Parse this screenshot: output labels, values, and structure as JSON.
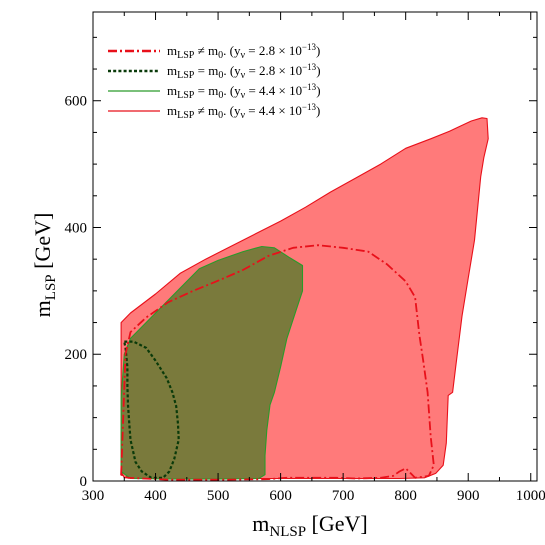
{
  "chart_data": {
    "type": "area",
    "x_axis": {
      "label_main": "m",
      "label_sub": "NLSP",
      "label_rest": " [GeV]",
      "range": [
        300,
        1010
      ],
      "ticks": [
        300,
        400,
        500,
        600,
        700,
        800,
        900,
        1000
      ],
      "tick_labels": [
        "300",
        "400",
        "500",
        "600",
        "700",
        "800",
        "900",
        "1000"
      ]
    },
    "y_axis": {
      "label_main": "m",
      "label_sub": "LSP",
      "label_rest": " [GeV]",
      "range": [
        0,
        740
      ],
      "ticks": [
        0,
        200,
        400,
        600
      ],
      "tick_labels": [
        "0",
        "200",
        "400",
        "600"
      ]
    },
    "legend_placement": "top-left",
    "series": [
      {
        "name": "mLSP ≠ m0. (yν = 2.8 × 10−13)",
        "legend": {
          "m": "m",
          "sub1": "LSP",
          "rel": " ≠ m",
          "sub0": "0",
          "mid": ". (y",
          "nu": "ν",
          "val": " = 2.8 × 10",
          "exp": "−13",
          "end": ")"
        },
        "style": "dashed",
        "color": "#e8101a",
        "fill": "none",
        "points": [
          [
            345,
            10
          ],
          [
            348,
            90
          ],
          [
            352,
            200
          ],
          [
            360,
            235
          ],
          [
            385,
            258
          ],
          [
            420,
            282
          ],
          [
            460,
            300
          ],
          [
            500,
            316
          ],
          [
            540,
            333
          ],
          [
            580,
            355
          ],
          [
            620,
            368
          ],
          [
            660,
            372
          ],
          [
            700,
            368
          ],
          [
            740,
            362
          ],
          [
            770,
            342
          ],
          [
            800,
            315
          ],
          [
            815,
            290
          ],
          [
            822,
            230
          ],
          [
            828,
            190
          ],
          [
            835,
            140
          ],
          [
            840,
            70
          ],
          [
            845,
            25
          ],
          [
            837,
            8
          ],
          [
            815,
            5
          ],
          [
            800,
            20
          ],
          [
            790,
            15
          ],
          [
            780,
            8
          ],
          [
            760,
            5
          ],
          [
            720,
            4
          ],
          [
            690,
            5
          ],
          [
            664,
            5
          ],
          [
            640,
            5
          ],
          [
            610,
            5
          ],
          [
            580,
            3
          ],
          [
            500,
            2
          ],
          [
            420,
            2
          ],
          [
            356,
            5
          ],
          [
            345,
            10
          ]
        ]
      },
      {
        "name": "mLSP = m0. (yν = 2.8 × 10−13)",
        "legend": {
          "m": "m",
          "sub1": "LSP",
          "rel": " = m",
          "sub0": "0",
          "mid": ". (y",
          "nu": "ν",
          "val": " = 2.8 × 10",
          "exp": "−13",
          "end": ")"
        },
        "style": "dotted",
        "color": "#0a3a0a",
        "fill": "none",
        "points": [
          [
            350,
            220
          ],
          [
            365,
            220
          ],
          [
            385,
            210
          ],
          [
            400,
            190
          ],
          [
            418,
            162
          ],
          [
            427,
            140
          ],
          [
            433,
            118
          ],
          [
            436,
            90
          ],
          [
            437,
            65
          ],
          [
            430,
            35
          ],
          [
            422,
            15
          ],
          [
            412,
            5
          ],
          [
            393,
            5
          ],
          [
            378,
            15
          ],
          [
            368,
            30
          ],
          [
            360,
            65
          ],
          [
            358,
            90
          ],
          [
            356,
            120
          ],
          [
            355,
            150
          ],
          [
            355,
            180
          ],
          [
            352,
            210
          ],
          [
            350,
            220
          ]
        ]
      },
      {
        "name": "mLSP = m0. (yν = 4.4 × 10−13)",
        "legend": {
          "m": "m",
          "sub1": "LSP",
          "rel": " = m",
          "sub0": "0",
          "mid": ". (y",
          "nu": "ν",
          "val": " = 4.4 × 10",
          "exp": "−13",
          "end": ")"
        },
        "style": "solid",
        "color": "#2a9a2a",
        "fill": "#7a7a3c",
        "points": [
          [
            345,
            15
          ],
          [
            345,
            130
          ],
          [
            350,
            200
          ],
          [
            360,
            225
          ],
          [
            390,
            255
          ],
          [
            420,
            285
          ],
          [
            445,
            310
          ],
          [
            470,
            335
          ],
          [
            500,
            348
          ],
          [
            540,
            362
          ],
          [
            570,
            370
          ],
          [
            590,
            368
          ],
          [
            615,
            352
          ],
          [
            635,
            340
          ],
          [
            635,
            300
          ],
          [
            625,
            270
          ],
          [
            610,
            225
          ],
          [
            600,
            180
          ],
          [
            590,
            140
          ],
          [
            583,
            120
          ],
          [
            578,
            80
          ],
          [
            575,
            40
          ],
          [
            575,
            10
          ],
          [
            565,
            4
          ],
          [
            500,
            3
          ],
          [
            420,
            3
          ],
          [
            360,
            4
          ],
          [
            345,
            15
          ]
        ]
      },
      {
        "name": "mLSP ≠ m0. (yν = 4.4 × 10−13)",
        "legend": {
          "m": "m",
          "sub1": "LSP",
          "rel": " ≠ m",
          "sub0": "0",
          "mid": ". (y",
          "nu": "ν",
          "val": " = 4.4 × 10",
          "exp": "−13",
          "end": ")"
        },
        "style": "solid",
        "color": "#e8101a",
        "fill": "#ff7a7a",
        "points": [
          [
            345,
            15
          ],
          [
            345,
            250
          ],
          [
            360,
            265
          ],
          [
            400,
            295
          ],
          [
            440,
            328
          ],
          [
            480,
            350
          ],
          [
            520,
            370
          ],
          [
            560,
            390
          ],
          [
            600,
            410
          ],
          [
            640,
            432
          ],
          [
            680,
            456
          ],
          [
            720,
            478
          ],
          [
            760,
            500
          ],
          [
            800,
            525
          ],
          [
            840,
            540
          ],
          [
            870,
            552
          ],
          [
            905,
            568
          ],
          [
            922,
            573
          ],
          [
            930,
            572
          ],
          [
            932,
            540
          ],
          [
            925,
            510
          ],
          [
            920,
            480
          ],
          [
            910,
            380
          ],
          [
            900,
            320
          ],
          [
            890,
            260
          ],
          [
            880,
            180
          ],
          [
            875,
            140
          ],
          [
            868,
            135
          ],
          [
            865,
            60
          ],
          [
            860,
            25
          ],
          [
            848,
            12
          ],
          [
            830,
            5
          ],
          [
            790,
            4
          ],
          [
            700,
            4
          ],
          [
            600,
            4
          ],
          [
            500,
            4
          ],
          [
            400,
            4
          ],
          [
            350,
            5
          ],
          [
            345,
            15
          ]
        ]
      }
    ]
  }
}
